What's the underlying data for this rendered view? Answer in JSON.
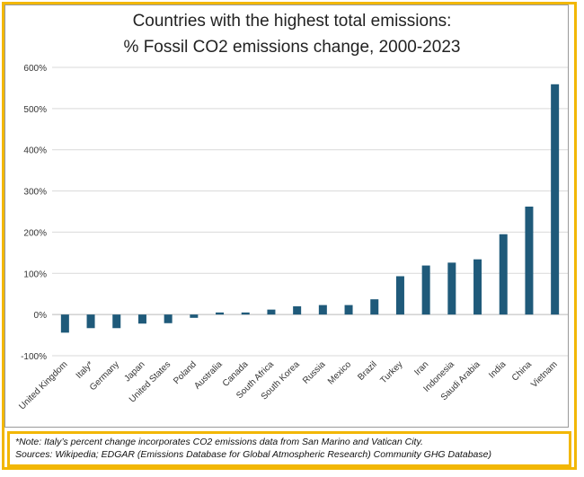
{
  "chart_data": {
    "type": "bar",
    "title_line1": "Countries with the highest total emissions:",
    "title_line2": "% Fossil CO2 emissions change,  2000-2023",
    "categories": [
      "United Kingdom",
      "Italy*",
      "Germany",
      "Japan",
      "United States",
      "Poland",
      "Australia",
      "Canada",
      "South Africa",
      "South Korea",
      "Russia",
      "Mexico",
      "Brazil",
      "Turkey",
      "Iran",
      "Indonesia",
      "Saudi Arabia",
      "India",
      "China",
      "Vietnam"
    ],
    "values": [
      -44,
      -33,
      -33,
      -22,
      -21,
      -8,
      5,
      5,
      12,
      20,
      23,
      23,
      37,
      93,
      119,
      126,
      134,
      195,
      262,
      559
    ],
    "ylim": [
      -100,
      600
    ],
    "yticks": [
      -100,
      0,
      100,
      200,
      300,
      400,
      500,
      600
    ],
    "ytick_labels": [
      "-100%",
      "0%",
      "100%",
      "200%",
      "300%",
      "400%",
      "500%",
      "600%"
    ],
    "bar_color": "#1f5a7a",
    "grid": true
  },
  "notes": {
    "line1": "*Note: Italy’s percent change incorporates CO2 emissions data from San Marino and Vatican City.",
    "line2": "Sources: Wikipedia; EDGAR (Emissions Database for Global Atmospheric Research) Community GHG Database)"
  }
}
